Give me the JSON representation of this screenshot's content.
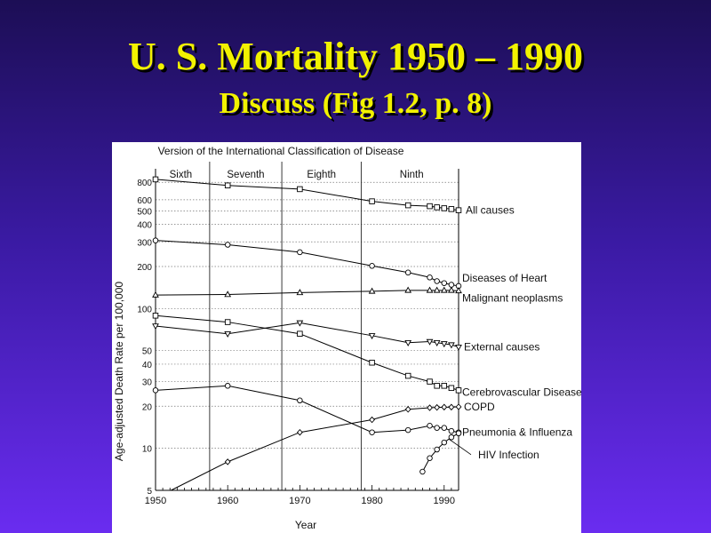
{
  "slide": {
    "title": "U. S. Mortality 1950 – 1990",
    "subtitle": "Discuss (Fig 1.2, p. 8)"
  },
  "chart_data": {
    "type": "line",
    "title": "Version of the International Classification of Disease",
    "xlabel": "Year",
    "ylabel": "Age-adjusted Death Rate per 100,000",
    "y_scale": "log",
    "xlim": [
      1950,
      1992
    ],
    "ylim": [
      5,
      1000
    ],
    "x_ticks": [
      1950,
      1960,
      1970,
      1980,
      1990
    ],
    "y_ticks": [
      5,
      10,
      20,
      30,
      40,
      50,
      100,
      200,
      300,
      400,
      500,
      600,
      800
    ],
    "grid": "horizontal dotted at y ticks",
    "icd_versions": [
      {
        "name": "Sixth",
        "start": 1949,
        "end": 1957
      },
      {
        "name": "Seventh",
        "start": 1958,
        "end": 1967
      },
      {
        "name": "Eighth",
        "start": 1968,
        "end": 1978
      },
      {
        "name": "Ninth",
        "start": 1979,
        "end": 1992
      }
    ],
    "series": [
      {
        "name": "All causes",
        "marker": "square",
        "x": [
          1950,
          1960,
          1970,
          1980,
          1985,
          1988,
          1989,
          1990,
          1991,
          1992
        ],
        "y": [
          840,
          760,
          715,
          585,
          548,
          540,
          530,
          522,
          515,
          505
        ]
      },
      {
        "name": "Diseases of Heart",
        "marker": "circle",
        "x": [
          1950,
          1960,
          1970,
          1980,
          1985,
          1988,
          1989,
          1990,
          1991,
          1992
        ],
        "y": [
          307,
          286,
          253,
          202,
          181,
          167,
          157,
          152,
          148,
          145
        ]
      },
      {
        "name": "Malignant neoplasms",
        "marker": "triangle",
        "x": [
          1950,
          1960,
          1970,
          1980,
          1985,
          1988,
          1989,
          1990,
          1991,
          1992
        ],
        "y": [
          125,
          126,
          130,
          133,
          135,
          135,
          135,
          135,
          135,
          134
        ]
      },
      {
        "name": "External causes",
        "marker": "triangle-down",
        "x": [
          1950,
          1960,
          1970,
          1980,
          1985,
          1988,
          1989,
          1990,
          1991,
          1992
        ],
        "y": [
          75,
          66,
          79,
          64,
          57,
          58,
          57,
          56,
          55,
          53
        ]
      },
      {
        "name": "Cerebrovascular Disease",
        "marker": "square",
        "x": [
          1950,
          1960,
          1970,
          1980,
          1985,
          1988,
          1989,
          1990,
          1991,
          1992
        ],
        "y": [
          89,
          80,
          66,
          41,
          33,
          30,
          28,
          28,
          27,
          26
        ]
      },
      {
        "name": "COPD",
        "marker": "diamond",
        "x": [
          1950,
          1960,
          1970,
          1980,
          1985,
          1988,
          1989,
          1990,
          1991,
          1992
        ],
        "y": [
          4.4,
          8.0,
          13.0,
          16.0,
          19.0,
          19.5,
          19.6,
          19.7,
          19.7,
          19.8
        ]
      },
      {
        "name": "Pneumonia & Influenza",
        "marker": "circle",
        "x": [
          1950,
          1960,
          1970,
          1980,
          1985,
          1988,
          1989,
          1990,
          1991,
          1992
        ],
        "y": [
          26,
          28,
          22,
          13,
          13.5,
          14.5,
          14,
          14,
          13.3,
          13
        ]
      },
      {
        "name": "HIV Infection",
        "marker": "circle",
        "x": [
          1987,
          1988,
          1989,
          1990,
          1991,
          1992
        ],
        "y": [
          6.8,
          8.5,
          9.8,
          11.0,
          12.0,
          12.8
        ]
      }
    ]
  }
}
